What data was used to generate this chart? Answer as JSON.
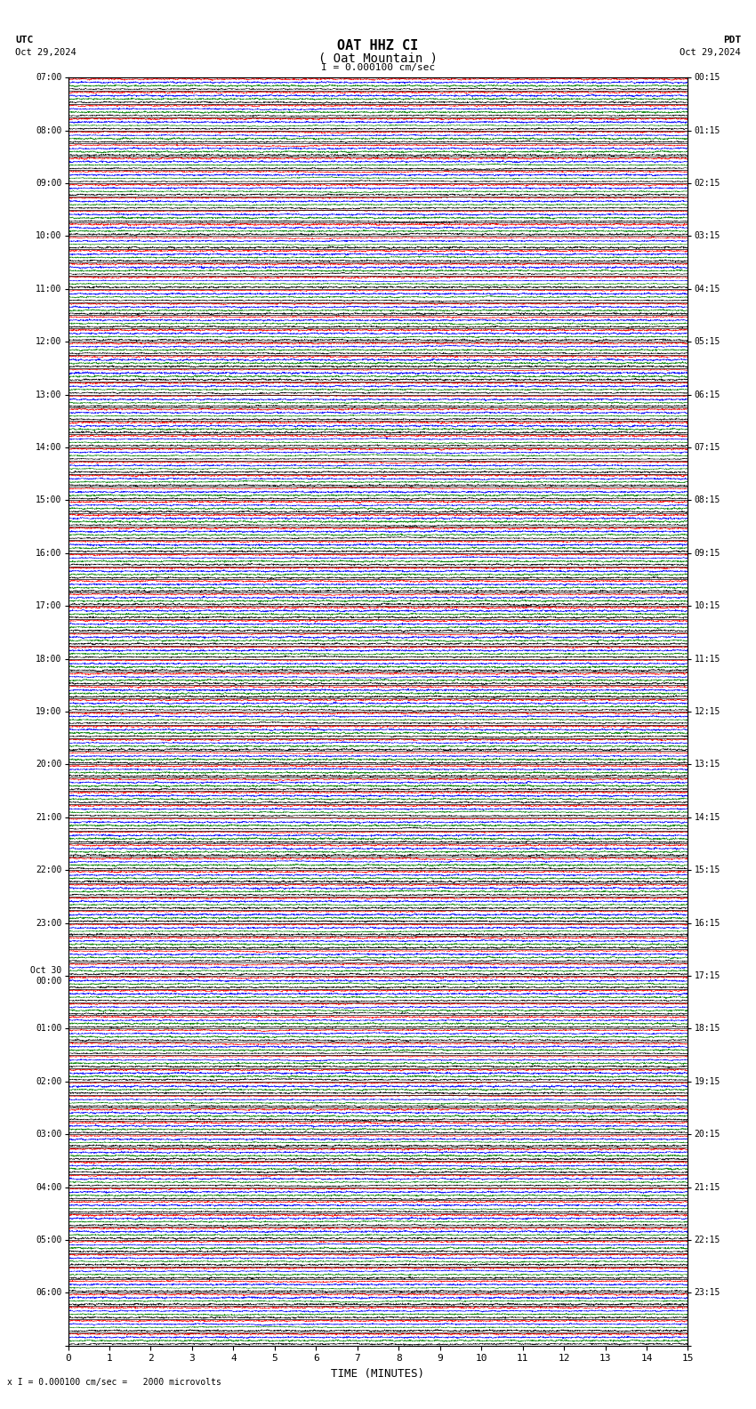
{
  "title_line1": "OAT HHZ CI",
  "title_line2": "( Oat Mountain )",
  "scale_label": "I = 0.000100 cm/sec",
  "utc_label": "UTC",
  "utc_date": "Oct 29,2024",
  "pdt_label": "PDT",
  "pdt_date": "Oct 29,2024",
  "xlabel": "TIME (MINUTES)",
  "bottom_label": "x I = 0.000100 cm/sec =   2000 microvolts",
  "xmin": 0,
  "xmax": 15,
  "left_times": [
    "07:00",
    "08:00",
    "09:00",
    "10:00",
    "11:00",
    "12:00",
    "13:00",
    "14:00",
    "15:00",
    "16:00",
    "17:00",
    "18:00",
    "19:00",
    "20:00",
    "21:00",
    "22:00",
    "23:00",
    "Oct 30\n00:00",
    "01:00",
    "02:00",
    "03:00",
    "04:00",
    "05:00",
    "06:00"
  ],
  "right_times": [
    "00:15",
    "01:15",
    "02:15",
    "03:15",
    "04:15",
    "05:15",
    "06:15",
    "07:15",
    "08:15",
    "09:15",
    "10:15",
    "11:15",
    "12:15",
    "13:15",
    "14:15",
    "15:15",
    "16:15",
    "17:15",
    "18:15",
    "19:15",
    "20:15",
    "21:15",
    "22:15",
    "23:15"
  ],
  "trace_colors": [
    "red",
    "blue",
    "green",
    "black"
  ],
  "num_rows": 96,
  "traces_per_row": 4,
  "background_color": "white",
  "figure_width": 8.5,
  "figure_height": 15.84,
  "dpi": 100
}
